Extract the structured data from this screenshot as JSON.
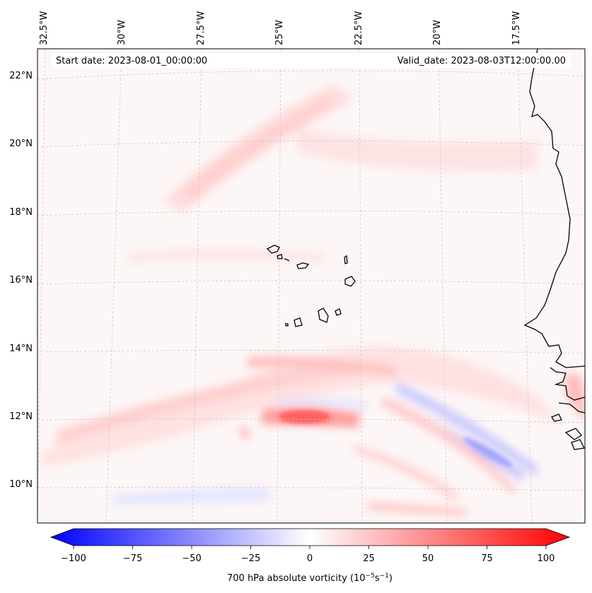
{
  "map": {
    "start_date": "Start date: 2023-08-01_00:00:00",
    "valid_date": "Valid_date: 2023-08-03T12:00:00.00",
    "lon_labels": [
      "32.5°W",
      "30°W",
      "27.5°W",
      "25°W",
      "22.5°W",
      "20°W",
      "17.5°W"
    ],
    "lat_labels": [
      "22°N",
      "20°N",
      "18°N",
      "16°N",
      "14°N",
      "12°N",
      "10°N"
    ],
    "field": "700 hPa absolute vorticity",
    "features": [
      "Cape Verde islands",
      "West African coastline",
      "vorticity maximum near 12°N 24°W"
    ]
  },
  "colorbar": {
    "label": "700 hPa absolute vorticity (10",
    "label_exp1": "−5",
    "label_mid": "s",
    "label_exp2": "−1",
    "label_close": ")",
    "ticks": [
      "−100",
      "−75",
      "−50",
      "−25",
      "0",
      "25",
      "50",
      "75",
      "100"
    ],
    "min": -100,
    "max": 100,
    "colors": {
      "low": "#0000ff",
      "mid": "#ffffff",
      "high": "#ff0000"
    }
  }
}
